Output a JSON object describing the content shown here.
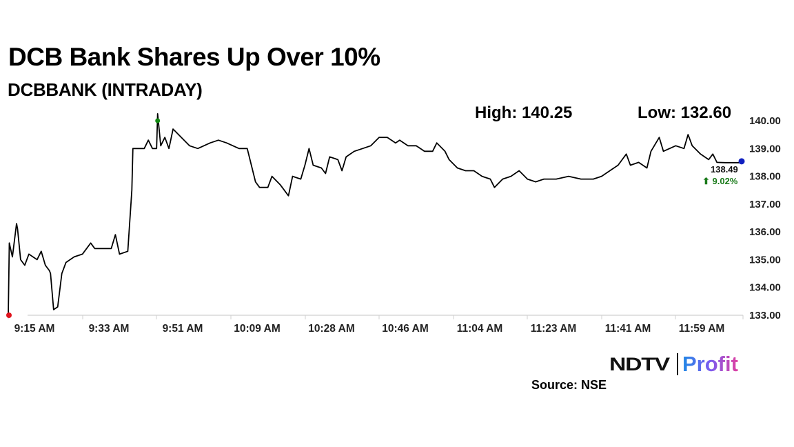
{
  "header": {
    "title": "DCB Bank Shares Up Over 10%",
    "subtitle": "DCBBANK (INTRADAY)",
    "high_label": "High: 140.25",
    "low_label": "Low: 132.60"
  },
  "last": {
    "price": "138.49",
    "change": "⬆ 9.02%",
    "change_color": "#1a7a1a"
  },
  "footer": {
    "logo_left": "NDTV",
    "logo_right": "Profit",
    "source": "Source: NSE"
  },
  "colors": {
    "line": "#000000",
    "start_marker": "#e0141e",
    "high_marker": "#138a13",
    "end_marker": "#1020c0",
    "axis": "#d9d9d9",
    "tick_text": "#222222"
  },
  "chart_data": {
    "type": "line",
    "title": "DCB Bank Shares Up Over 10%",
    "subtitle": "DCBBANK (INTRADAY)",
    "xlabel": "",
    "ylabel": "",
    "ylim": [
      133.0,
      140.0
    ],
    "yticks": [
      "133.00",
      "134.00",
      "135.00",
      "136.00",
      "137.00",
      "138.00",
      "139.00",
      "140.00"
    ],
    "xticks": [
      "9:15 AM",
      "9:33 AM",
      "9:51 AM",
      "10:09 AM",
      "10:28 AM",
      "10:46 AM",
      "11:04 AM",
      "11:23 AM",
      "11:41 AM",
      "11:59 AM"
    ],
    "grid": false,
    "legend": null,
    "annotations": {
      "high": 140.25,
      "low": 132.6,
      "last_price": 138.49,
      "change_pct": 9.02
    },
    "series": [
      {
        "name": "DCBBANK",
        "points": [
          [
            "9:15",
            133.0
          ],
          [
            "9:15",
            135.6
          ],
          [
            "9:16",
            135.1
          ],
          [
            "9:17",
            136.3
          ],
          [
            "9:17",
            136.1
          ],
          [
            "9:18",
            135.0
          ],
          [
            "9:19",
            134.8
          ],
          [
            "9:20",
            135.2
          ],
          [
            "9:22",
            135.0
          ],
          [
            "9:23",
            135.3
          ],
          [
            "9:24",
            134.8
          ],
          [
            "9:25",
            134.6
          ],
          [
            "9:25",
            134.5
          ],
          [
            "9:26",
            133.2
          ],
          [
            "9:27",
            133.3
          ],
          [
            "9:28",
            134.5
          ],
          [
            "9:29",
            134.9
          ],
          [
            "9:31",
            135.1
          ],
          [
            "9:33",
            135.2
          ],
          [
            "9:35",
            135.6
          ],
          [
            "9:36",
            135.4
          ],
          [
            "9:40",
            135.4
          ],
          [
            "9:41",
            135.9
          ],
          [
            "9:42",
            135.2
          ],
          [
            "9:44",
            135.3
          ],
          [
            "9:45",
            137.5
          ],
          [
            "9:45",
            139.0
          ],
          [
            "9:48",
            139.0
          ],
          [
            "9:49",
            139.3
          ],
          [
            "9:50",
            139.0
          ],
          [
            "9:51",
            139.0
          ],
          [
            "9:51",
            140.25
          ],
          [
            "9:52",
            139.1
          ],
          [
            "9:53",
            139.4
          ],
          [
            "9:54",
            139.0
          ],
          [
            "9:55",
            139.7
          ],
          [
            "9:57",
            139.4
          ],
          [
            "9:59",
            139.1
          ],
          [
            "10:01",
            139.0
          ],
          [
            "10:04",
            139.2
          ],
          [
            "10:06",
            139.3
          ],
          [
            "10:08",
            139.2
          ],
          [
            "10:11",
            139.0
          ],
          [
            "10:13",
            139.0
          ],
          [
            "10:14",
            138.4
          ],
          [
            "10:15",
            137.8
          ],
          [
            "10:16",
            137.6
          ],
          [
            "10:18",
            137.6
          ],
          [
            "10:19",
            138.0
          ],
          [
            "10:21",
            137.7
          ],
          [
            "10:23",
            137.3
          ],
          [
            "10:24",
            138.0
          ],
          [
            "10:26",
            137.9
          ],
          [
            "10:27",
            138.4
          ],
          [
            "10:28",
            139.0
          ],
          [
            "10:29",
            138.4
          ],
          [
            "10:31",
            138.3
          ],
          [
            "10:32",
            138.1
          ],
          [
            "10:33",
            138.7
          ],
          [
            "10:35",
            138.6
          ],
          [
            "10:36",
            138.2
          ],
          [
            "10:37",
            138.7
          ],
          [
            "10:39",
            138.9
          ],
          [
            "10:41",
            139.0
          ],
          [
            "10:43",
            139.1
          ],
          [
            "10:45",
            139.4
          ],
          [
            "10:47",
            139.4
          ],
          [
            "10:49",
            139.2
          ],
          [
            "10:50",
            139.3
          ],
          [
            "10:52",
            139.1
          ],
          [
            "10:54",
            139.1
          ],
          [
            "10:56",
            138.9
          ],
          [
            "10:58",
            138.9
          ],
          [
            "10:59",
            139.2
          ],
          [
            "11:01",
            138.9
          ],
          [
            "11:02",
            138.6
          ],
          [
            "11:04",
            138.3
          ],
          [
            "11:06",
            138.2
          ],
          [
            "11:08",
            138.2
          ],
          [
            "11:10",
            138.0
          ],
          [
            "11:12",
            137.9
          ],
          [
            "11:13",
            137.6
          ],
          [
            "11:15",
            137.9
          ],
          [
            "11:17",
            138.0
          ],
          [
            "11:19",
            138.2
          ],
          [
            "11:21",
            137.9
          ],
          [
            "11:23",
            137.8
          ],
          [
            "11:25",
            137.9
          ],
          [
            "11:28",
            137.9
          ],
          [
            "11:31",
            138.0
          ],
          [
            "11:34",
            137.9
          ],
          [
            "11:37",
            137.9
          ],
          [
            "11:39",
            138.0
          ],
          [
            "11:41",
            138.2
          ],
          [
            "11:43",
            138.4
          ],
          [
            "11:45",
            138.8
          ],
          [
            "11:46",
            138.4
          ],
          [
            "11:48",
            138.5
          ],
          [
            "11:50",
            138.3
          ],
          [
            "11:51",
            138.9
          ],
          [
            "11:53",
            139.4
          ],
          [
            "11:54",
            138.9
          ],
          [
            "11:57",
            139.1
          ],
          [
            "11:59",
            139.0
          ],
          [
            "12:00",
            139.5
          ],
          [
            "12:01",
            139.1
          ],
          [
            "12:03",
            138.8
          ],
          [
            "12:05",
            138.6
          ],
          [
            "12:06",
            138.8
          ],
          [
            "12:07",
            138.5
          ],
          [
            "12:09",
            138.49
          ]
        ]
      }
    ]
  }
}
